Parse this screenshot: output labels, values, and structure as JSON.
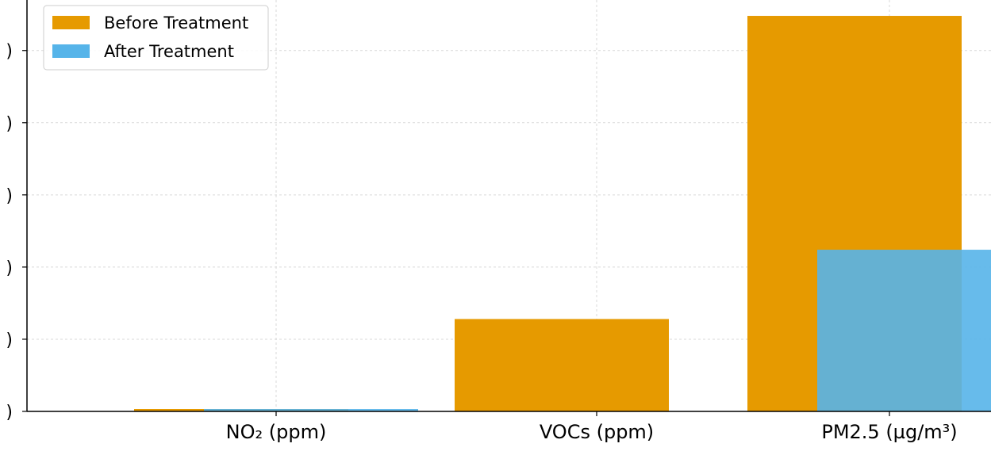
{
  "chart_data": {
    "type": "bar",
    "categories": [
      "NO₂ (ppm)",
      "VOCs (ppm)",
      "PM2.5 (µg/m³)"
    ],
    "series": [
      {
        "name": "Before Treatment",
        "values": [
          0.15,
          64,
          274
        ],
        "color": "#E69A00"
      },
      {
        "name": "After Treatment",
        "values": [
          0.05,
          0,
          112
        ],
        "color": "#56B4E9"
      }
    ],
    "ytick_values": [
      0,
      50,
      100,
      150,
      200,
      250
    ],
    "ytick_labels": [
      ")",
      ")",
      ")",
      ")",
      ")",
      ")"
    ],
    "ylim": [
      0,
      285
    ],
    "grid": true,
    "legend_position": "top-left"
  }
}
